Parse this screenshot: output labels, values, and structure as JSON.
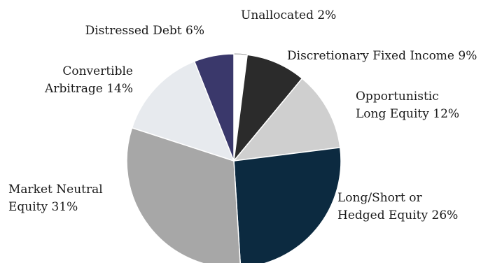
{
  "chart_data": {
    "type": "pie",
    "slices": [
      {
        "label_lines": [
          "Unallocated 2%"
        ],
        "value": 2,
        "color": "#ffffff"
      },
      {
        "label_lines": [
          "Discretionary Fixed Income 9%"
        ],
        "value": 9,
        "color": "#2b2b2b"
      },
      {
        "label_lines": [
          "Opportunistic",
          "Long Equity 12%"
        ],
        "value": 12,
        "color": "#cfcfcf"
      },
      {
        "label_lines": [
          "Long/Short or",
          "Hedged Equity 26%"
        ],
        "value": 26,
        "color": "#0c2a40"
      },
      {
        "label_lines": [
          "Market Neutral",
          "Equity 31%"
        ],
        "value": 31,
        "color": "#a7a7a7"
      },
      {
        "label_lines": [
          "Convertible",
          "Arbitrage 14%"
        ],
        "value": 14,
        "color": "#e7eaee"
      },
      {
        "label_lines": [
          "Distressed Debt 6%"
        ],
        "value": 6,
        "color": "#3a386b"
      }
    ],
    "start": "12 o'clock",
    "direction": "clockwise",
    "legend": "none",
    "labels": "outside"
  }
}
